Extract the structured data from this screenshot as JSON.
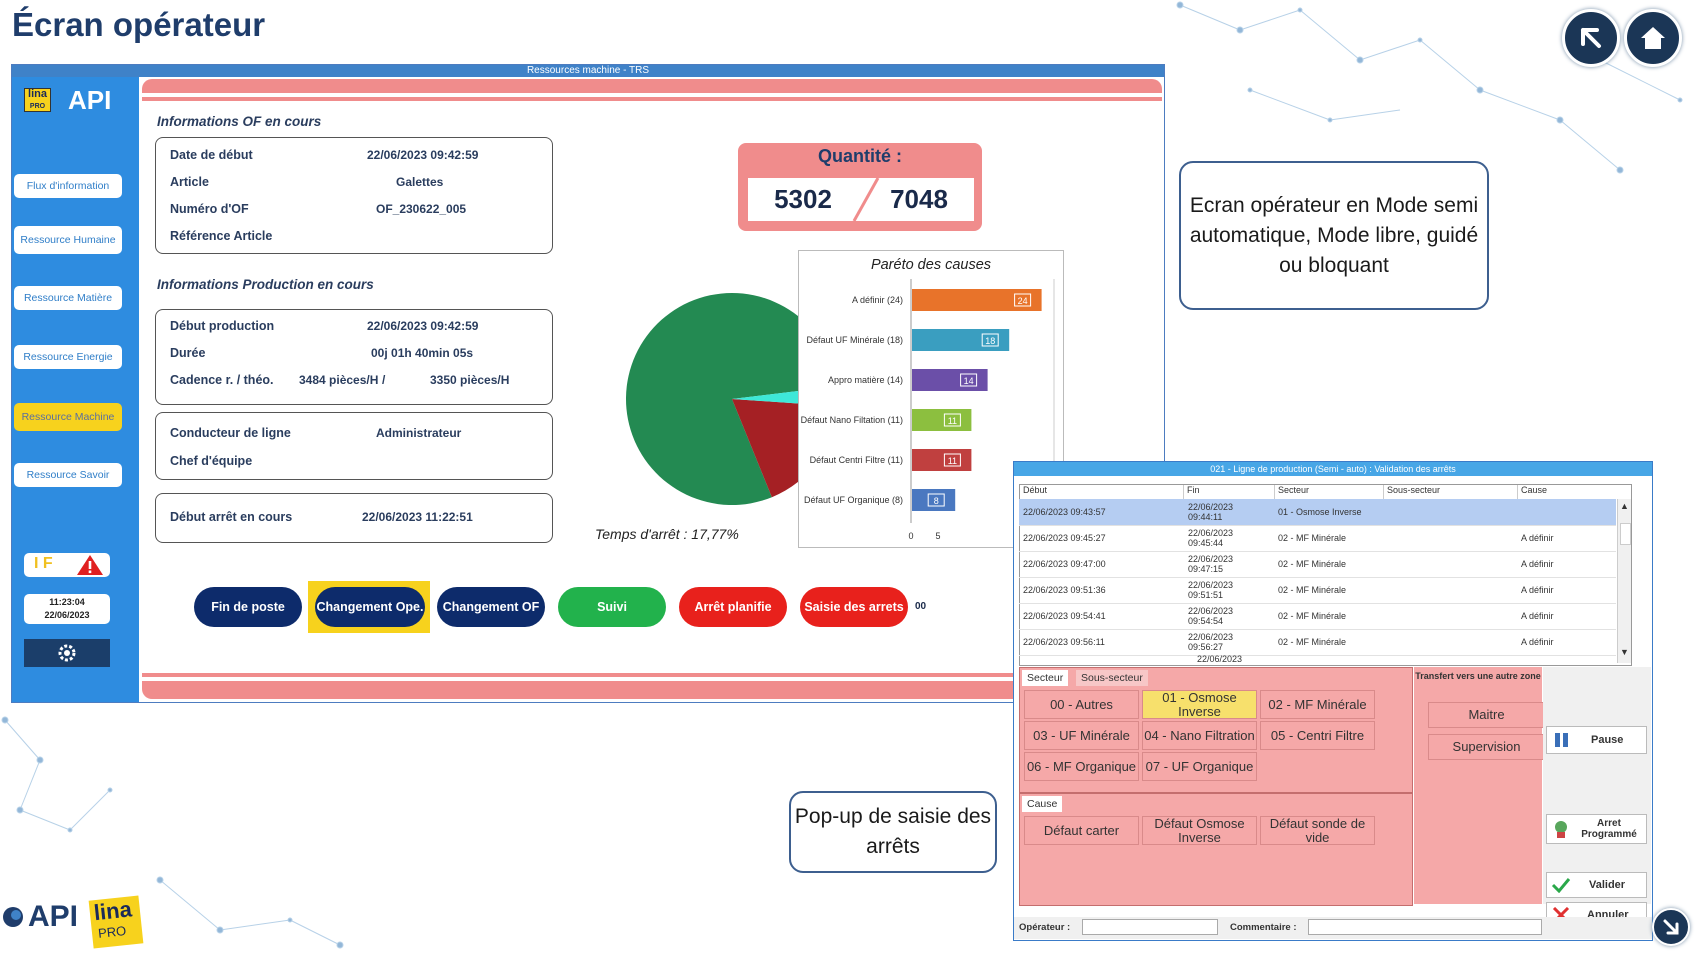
{
  "slide": {
    "title": "Écran opérateur"
  },
  "main_window": {
    "title": "Ressources machine - TRS",
    "logo_text": "API",
    "logo_badge": "lina",
    "logo_badge_sub": "PRO",
    "sidebar": {
      "items": [
        {
          "label": "Flux d'information",
          "active": false
        },
        {
          "label": "Ressource Humaine",
          "active": false
        },
        {
          "label": "Ressource Matière",
          "active": false
        },
        {
          "label": "Ressource Energie",
          "active": false
        },
        {
          "label": "Ressource Machine",
          "active": true
        },
        {
          "label": "Ressource Savoir",
          "active": false
        }
      ],
      "status_letters": "I F",
      "clock_time": "11:23:04",
      "clock_date": "22/06/2023"
    },
    "of_section": {
      "title": "Informations OF en cours",
      "rows": [
        {
          "label": "Date de début",
          "value": "22/06/2023 09:42:59"
        },
        {
          "label": "Article",
          "value": "Galettes"
        },
        {
          "label": "Numéro d'OF",
          "value": "OF_230622_005"
        },
        {
          "label": "Référence Article",
          "value": ""
        }
      ]
    },
    "prod_section": {
      "title": "Informations Production en cours",
      "rows": [
        {
          "label": "Début production",
          "value": "22/06/2023 09:42:59"
        },
        {
          "label": "Durée",
          "value": "00j 01h 40min 05s"
        },
        {
          "label": "Cadence r. / théo.",
          "value": "3484 pièces/H",
          "sep": "/",
          "value2": "3350 pièces/H"
        }
      ]
    },
    "staff": {
      "rows": [
        {
          "label": "Conducteur de ligne",
          "value": "Administrateur"
        },
        {
          "label": "Chef d'équipe",
          "value": ""
        }
      ]
    },
    "stop": {
      "label": "Début arrêt en cours",
      "value": "22/06/2023 11:22:51"
    },
    "quantity": {
      "title": "Quantité :",
      "done": "5302",
      "target": "7048"
    },
    "pie": {
      "caption": "Temps d'arrêt : 17,77%",
      "colors": [
        "#238a52",
        "#a52024",
        "#3ee8d8"
      ]
    },
    "buttons": [
      {
        "label": "Fin de poste",
        "color": "#0d2b6b"
      },
      {
        "label": "Changement Ope.",
        "color": "#0d2b6b",
        "highlight": true
      },
      {
        "label": "Changement OF",
        "color": "#0d2b6b"
      },
      {
        "label": "Suivi",
        "color": "#22b24c"
      },
      {
        "label": "Arrêt planifie",
        "color": "#e8211c"
      },
      {
        "label": "Saisie des arrets",
        "color": "#e8211c"
      }
    ],
    "partial_text": "00"
  },
  "chart_data": {
    "type": "bar",
    "title": "Paréto des causes",
    "orientation": "horizontal",
    "categories": [
      "A définir (24)",
      "Défaut UF Minérale (18)",
      "Appro matière (14)",
      "Défaut Nano Filtation (11)",
      "Défaut Centri Filtre (11)",
      "Défaut UF Organique (8)"
    ],
    "values": [
      24,
      18,
      14,
      11,
      11,
      8
    ],
    "colors": [
      "#e8732a",
      "#3a9ec0",
      "#6b4fa8",
      "#8cbf3f",
      "#c0403f",
      "#4a78c0"
    ],
    "xticks": [
      "0",
      "5"
    ],
    "xlim": [
      0,
      25
    ]
  },
  "popup": {
    "title": "021 - Ligne de production (Semi - auto) : Validation des arrêts",
    "columns": [
      "Début",
      "Fin",
      "Secteur",
      "Sous-secteur",
      "Cause"
    ],
    "rows": [
      {
        "debut": "22/06/2023 09:43:57",
        "fin": "22/06/2023\n09:44:11",
        "secteur": "01 - Osmose Inverse",
        "sous": "",
        "cause": "",
        "selected": true
      },
      {
        "debut": "22/06/2023 09:45:27",
        "fin": "22/06/2023\n09:45:44",
        "secteur": "02 - MF Minérale",
        "sous": "",
        "cause": "A définir"
      },
      {
        "debut": "22/06/2023 09:47:00",
        "fin": "22/06/2023\n09:47:15",
        "secteur": "02 - MF Minérale",
        "sous": "",
        "cause": "A définir"
      },
      {
        "debut": "22/06/2023 09:51:36",
        "fin": "22/06/2023\n09:51:51",
        "secteur": "02 - MF Minérale",
        "sous": "",
        "cause": "A définir"
      },
      {
        "debut": "22/06/2023 09:54:41",
        "fin": "22/06/2023\n09:54:54",
        "secteur": "02 - MF Minérale",
        "sous": "",
        "cause": "A définir"
      },
      {
        "debut": "22/06/2023 09:56:11",
        "fin": "22/06/2023\n09:56:27",
        "secteur": "02 - MF Minérale",
        "sous": "",
        "cause": "A définir"
      }
    ],
    "partial_row": "22/06/2023",
    "tabs": [
      "Secteur",
      "Sous-secteur"
    ],
    "zones": [
      "00 - Autres",
      "01 - Osmose Inverse",
      "02 - MF Minérale",
      "03 - UF Minérale",
      "04 - Nano Filtration",
      "05 - Centri Filtre",
      "06 - MF Organique",
      "07 - UF Organique"
    ],
    "selected_zone": "01 - Osmose Inverse",
    "transfer_title": "Transfert vers une autre zone",
    "transfer_buttons": [
      "Maitre",
      "Supervision"
    ],
    "cause_tab": "Cause",
    "causes": [
      "Défaut carter",
      "Défaut Osmose Inverse",
      "Défaut sonde de vide"
    ],
    "right_buttons": [
      "Pause",
      "Arret Programmé",
      "Valider",
      "Annuler"
    ],
    "operator_label": "Opérateur :",
    "comment_label": "Commentaire :"
  },
  "callouts": {
    "mode": "Ecran opérateur en Mode semi automatique, Mode libre, guidé ou bloquant",
    "popup": "Pop-up de saisie des arrêts"
  },
  "footer_logo": {
    "api": "API",
    "lina": "lina",
    "pro": "PRO"
  }
}
